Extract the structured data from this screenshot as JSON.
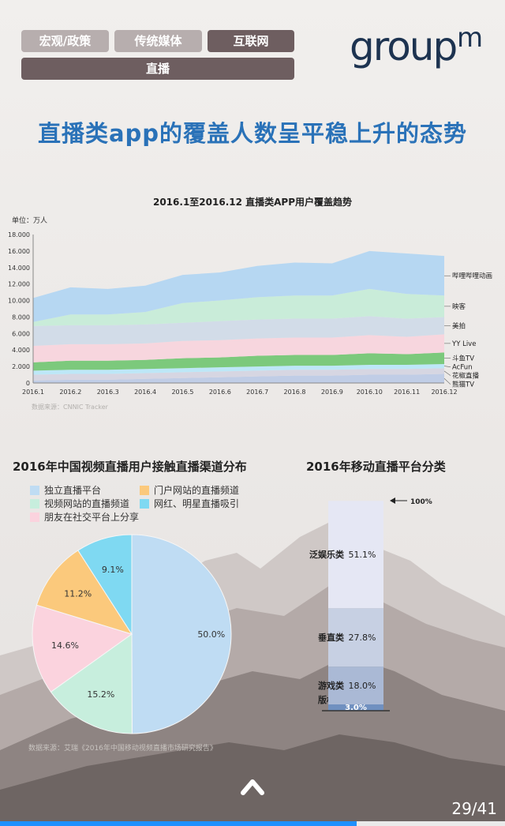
{
  "tabs": [
    {
      "label": "宏观/政策",
      "active": false
    },
    {
      "label": "传统媒体",
      "active": false
    },
    {
      "label": "互联网",
      "active": true
    },
    {
      "label": "直播",
      "active": true
    }
  ],
  "logo": {
    "text": "group",
    "sup": "m"
  },
  "headline": "直播类app的覆盖人数呈平稳上升的态势",
  "colors": {
    "headline": "#2a72b8",
    "tab_active": "#6e5e60",
    "tab_inactive": "#b7aeae",
    "progress": "#1e90ff"
  },
  "chart_data": [
    {
      "type": "area",
      "stacked": true,
      "title": "2016.1至2016.12 直播类APP用户覆盖趋势",
      "unit_label": "单位：万人",
      "source": "数据来源：CNNIC Tracker",
      "x": [
        "2016.1",
        "2016.2",
        "2016.3",
        "2016.4",
        "2016.5",
        "2016.6",
        "2016.7",
        "2016.8",
        "2016.9",
        "2016.10",
        "2016.11",
        "2016.12"
      ],
      "ylim": [
        0,
        18000
      ],
      "yticks": [
        "0",
        "2.000",
        "4.000",
        "6.000",
        "8.000",
        "10.000",
        "12.000",
        "14.000",
        "16.000",
        "18.000"
      ],
      "grid": false,
      "series": [
        {
          "name": "熊猫TV",
          "color": "#c0cde6",
          "values": [
            300,
            400,
            400,
            500,
            600,
            700,
            800,
            900,
            900,
            1000,
            1000,
            1100
          ]
        },
        {
          "name": "花椒直播",
          "color": "#d6d6e2",
          "values": [
            700,
            700,
            700,
            700,
            700,
            700,
            700,
            700,
            700,
            700,
            700,
            700
          ]
        },
        {
          "name": "AcFun",
          "color": "#bde7f7",
          "values": [
            500,
            500,
            500,
            500,
            500,
            500,
            500,
            500,
            500,
            500,
            500,
            500
          ]
        },
        {
          "name": "斗鱼TV",
          "color": "#7cc97c",
          "values": [
            1000,
            1100,
            1100,
            1100,
            1200,
            1200,
            1300,
            1300,
            1300,
            1400,
            1300,
            1400
          ]
        },
        {
          "name": "YY Live",
          "color": "#f7d6de",
          "values": [
            2000,
            2000,
            2000,
            2000,
            2100,
            2100,
            2100,
            2100,
            2100,
            2200,
            2100,
            2200
          ]
        },
        {
          "name": "美拍",
          "color": "#d2dce8",
          "values": [
            2400,
            2300,
            2300,
            2300,
            2200,
            2300,
            2300,
            2300,
            2300,
            2300,
            2200,
            2100
          ]
        },
        {
          "name": "映客",
          "color": "#c9ecd9",
          "values": [
            500,
            1300,
            1300,
            1500,
            2400,
            2500,
            2700,
            2800,
            2800,
            3300,
            3000,
            2600
          ]
        },
        {
          "name": "哔哩哔哩动画",
          "color": "#b6d7f2",
          "values": [
            2900,
            3300,
            3100,
            3200,
            3400,
            3400,
            3800,
            4000,
            3900,
            4600,
            4900,
            4800
          ]
        }
      ]
    },
    {
      "type": "pie",
      "title": "2016年中国视频直播用户接触直播渠道分布",
      "source": "数据来源：艾瑞《2016年中国移动视频直播市场研究报告》",
      "slices": [
        {
          "name": "独立直播平台",
          "value": 50.0,
          "label": "50.0%",
          "color": "#bfdcf3"
        },
        {
          "name": "视频网站的直播频道",
          "value": 15.2,
          "label": "15.2%",
          "color": "#c7eedd"
        },
        {
          "name": "朋友在社交平台上分享",
          "value": 14.6,
          "label": "14.6%",
          "color": "#fbd3de"
        },
        {
          "name": "门户网站的直播频道",
          "value": 11.2,
          "label": "11.2%",
          "color": "#fbc97c"
        },
        {
          "name": "网红、明星直播吸引",
          "value": 9.1,
          "label": "9.1%",
          "color": "#7fd9f2"
        }
      ]
    },
    {
      "type": "bar",
      "stacked": true,
      "title": "2016年移动直播平台分类",
      "total_label": "100%",
      "segments": [
        {
          "name": "版权类",
          "value": 3.0,
          "label": "3.0%",
          "color": "#7090c0"
        },
        {
          "name": "游戏类",
          "value": 18.0,
          "label": "18.0%",
          "color": "#aab9d5"
        },
        {
          "name": "垂直类",
          "value": 27.8,
          "label": "27.8%",
          "color": "#c7d0e3"
        },
        {
          "name": "泛娱乐类",
          "value": 51.1,
          "label": "51.1%",
          "color": "#e5e7f4"
        }
      ]
    }
  ],
  "page": {
    "current": 29,
    "total": 41,
    "label": "29/41",
    "progress": 0.707
  }
}
